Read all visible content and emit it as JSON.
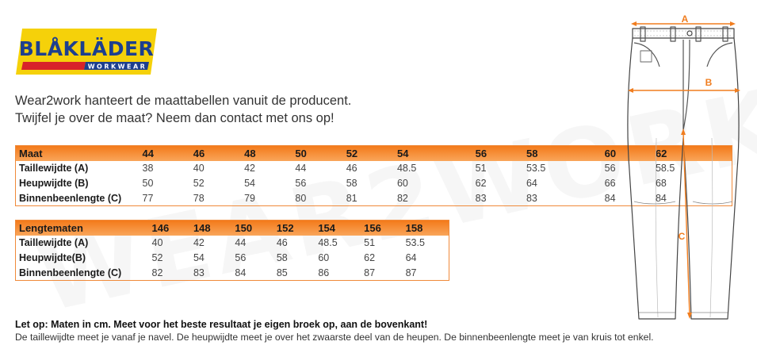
{
  "brand": {
    "name": "BLÅKLÄDER",
    "sub": "WORKWEAR",
    "colors": {
      "yellow": "#f5d10a",
      "blue": "#1d3f8f",
      "red": "#d8232a"
    }
  },
  "intro": {
    "line1": "Wear2work hanteert de maattabellen vanuit de producent.",
    "line2": "Twijfel je over de maat? Neem dan contact met ons op!"
  },
  "table1": {
    "headers": [
      "Maat",
      "44",
      "46",
      "48",
      "50",
      "52",
      "54",
      "56",
      "58",
      "60",
      "62"
    ],
    "rows": [
      [
        "Taillewijdte (A)",
        "38",
        "40",
        "42",
        "44",
        "46",
        "48.5",
        "51",
        "53.5",
        "56",
        "58.5"
      ],
      [
        "Heupwijdte (B)",
        "50",
        "52",
        "54",
        "56",
        "58",
        "60",
        "62",
        "64",
        "66",
        "68"
      ],
      [
        "Binnenbeenlengte (C)",
        "77",
        "78",
        "79",
        "80",
        "81",
        "82",
        "83",
        "83",
        "84",
        "84"
      ]
    ]
  },
  "table2": {
    "headers": [
      "Lengtematen",
      "146",
      "148",
      "150",
      "152",
      "154",
      "156",
      "158"
    ],
    "rows": [
      [
        "Taillewijdte (A)",
        "40",
        "42",
        "44",
        "46",
        "48.5",
        "51",
        "53.5"
      ],
      [
        "Heupwijdte(B)",
        "52",
        "54",
        "56",
        "58",
        "60",
        "62",
        "64"
      ],
      [
        "Binnenbeenlengte (C)",
        "82",
        "83",
        "84",
        "85",
        "86",
        "87",
        "87"
      ]
    ]
  },
  "notes": {
    "bold": "Let op: Maten in cm. Meet voor het beste resultaat je eigen broek op, aan de bovenkant!",
    "text": "De taillewijdte meet je vanaf je navel. De heupwijdte meet je over het zwaarste deel van de heupen. De binnenbeenlengte meet je van kruis tot enkel."
  },
  "diagram": {
    "labels": {
      "a": "A",
      "b": "B",
      "c": "C"
    },
    "accent": "#f07d1f"
  },
  "watermark": "WEAR2WORK"
}
